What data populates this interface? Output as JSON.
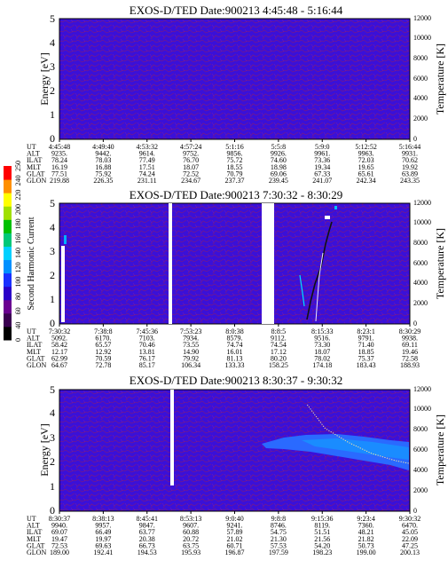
{
  "panels": [
    {
      "title": "EXOS-D/TED   Date:900213   4:45:48 - 5:16:44",
      "ylabel": "Energy [eV]",
      "y2label": "Temperature [K]",
      "ylim": [
        0,
        5
      ],
      "yticks": [
        "0",
        "1",
        "2",
        "3",
        "4",
        "5"
      ],
      "y2ticks": [
        "0",
        "2000",
        "4000",
        "6000",
        "8000",
        "10000",
        "12000"
      ],
      "row_labels": [
        "UT",
        "ALT",
        "ILAT",
        "MLT",
        "GLAT",
        "GLON"
      ],
      "columns": [
        [
          "4:45:48",
          "9235.",
          "78.24",
          "16.19",
          "77.51",
          "219.88"
        ],
        [
          "4:49:40",
          "9442.",
          "78.03",
          "16.88",
          "75.92",
          "226.35"
        ],
        [
          "4:53:32",
          "9614.",
          "77.49",
          "17.51",
          "74.24",
          "231.11"
        ],
        [
          "4:57:24",
          "9752.",
          "76.70",
          "18.07",
          "72.52",
          "234.67"
        ],
        [
          "5:1:16",
          "9856.",
          "75.72",
          "18.55",
          "70.79",
          "237.37"
        ],
        [
          "5:5:8",
          "9926.",
          "74.60",
          "18.98",
          "69.06",
          "239.45"
        ],
        [
          "5:9:0",
          "9961.",
          "73.36",
          "19.34",
          "67.33",
          "241.07"
        ],
        [
          "5:12:52",
          "9963.",
          "72.03",
          "19.65",
          "65.61",
          "242.34"
        ],
        [
          "5:16:44",
          "9931.",
          "70.62",
          "19.92",
          "63.89",
          "243.35"
        ]
      ]
    },
    {
      "title": "EXOS-D/TED   Date:900213   7:30:32 - 8:30:29",
      "ylabel": "Second Harmonic Current",
      "y2label": "Temperature [K]",
      "ylim": [
        0,
        5
      ],
      "yticks": [
        "0",
        "1",
        "2",
        "3",
        "4",
        "5"
      ],
      "y2ticks": [
        "0",
        "2000",
        "4000",
        "6000",
        "8000",
        "10000",
        "12000"
      ],
      "row_labels": [
        "UT",
        "ALT",
        "ILAT",
        "MLT",
        "GLAT",
        "GLON"
      ],
      "columns": [
        [
          "7:30:32",
          "5092.",
          "58.42",
          "12.17",
          "62.99",
          "64.67"
        ],
        [
          "7:38:8",
          "6170.",
          "65.57",
          "12.92",
          "70.59",
          "72.78"
        ],
        [
          "7:45:36",
          "7103.",
          "70.46",
          "13.81",
          "76.17",
          "85.17"
        ],
        [
          "7:53:23",
          "7934.",
          "73.55",
          "14.90",
          "79.92",
          "106.34"
        ],
        [
          "8:0:38",
          "8579.",
          "74.74",
          "16.01",
          "81.13",
          "133.33"
        ],
        [
          "8:8:5",
          "9112.",
          "74.54",
          "17.12",
          "80.20",
          "158.25"
        ],
        [
          "8:15:33",
          "9516.",
          "73.30",
          "18.07",
          "78.02",
          "174.18"
        ],
        [
          "8:23:1",
          "9791.",
          "71.40",
          "18.85",
          "75.37",
          "183.43"
        ],
        [
          "8:30:29",
          "9938.",
          "69.11",
          "19.46",
          "72.58",
          "188.93"
        ]
      ]
    },
    {
      "title": "EXOS-D/TED   Date:900213   8:30:37 - 9:30:32",
      "ylabel": "Energy [eV]",
      "y2label": "Temperature [K]",
      "ylim": [
        0,
        5
      ],
      "yticks": [
        "0",
        "1",
        "2",
        "3",
        "4",
        "5"
      ],
      "y2ticks": [
        "0",
        "2000",
        "4000",
        "6000",
        "8000",
        "10000",
        "12000"
      ],
      "row_labels": [
        "UT",
        "ALT",
        "ILAT",
        "MLT",
        "GLAT",
        "GLON"
      ],
      "columns": [
        [
          "8:30:37",
          "9940.",
          "69.07",
          "19.47",
          "72.53",
          "189.00"
        ],
        [
          "8:38:13",
          "9957.",
          "66.49",
          "19.97",
          "69.63",
          "192.41"
        ],
        [
          "8:45:41",
          "9847.",
          "63.77",
          "20.38",
          "66.73",
          "194.53"
        ],
        [
          "8:53:13",
          "9607.",
          "60.88",
          "20.72",
          "63.75",
          "195.93"
        ],
        [
          "9:0:40",
          "9241.",
          "57.89",
          "21.02",
          "60.71",
          "196.87"
        ],
        [
          "9:8:8",
          "8746.",
          "54.75",
          "21.30",
          "57.53",
          "197.59"
        ],
        [
          "9:15:36",
          "8119.",
          "51.51",
          "21.56",
          "54.20",
          "198.23"
        ],
        [
          "9:23:4",
          "7360.",
          "48.21",
          "21.82",
          "50.73",
          "199.00"
        ],
        [
          "9:30:32",
          "6470.",
          "45.05",
          "22.09",
          "47.25",
          "200.13"
        ]
      ]
    }
  ],
  "colorbar": {
    "ticks": [
      "0",
      "40",
      "60",
      "80",
      "100",
      "120",
      "140",
      "160",
      "180",
      "200",
      "220",
      "240",
      "250"
    ],
    "colors": [
      "#000000",
      "#3a0050",
      "#6a0090",
      "#2a00c8",
      "#1a30ff",
      "#0090ff",
      "#00d0ff",
      "#00c878",
      "#00c000",
      "#a0e000",
      "#ffff00",
      "#ff9000",
      "#ff0000"
    ]
  },
  "chart_data": [
    {
      "type": "heatmap",
      "title": "EXOS-D/TED   Date:900213   4:45:48 - 5:16:44",
      "xlabel": "UT",
      "ylabel": "Energy [eV]",
      "y2label": "Temperature [K]",
      "ylim": [
        0,
        5
      ],
      "y2lim": [
        0,
        12000
      ],
      "background_level": "low (blue)",
      "features": []
    },
    {
      "type": "heatmap",
      "title": "EXOS-D/TED   Date:900213   7:30:32 - 8:30:29",
      "xlabel": "UT",
      "ylabel": "Second Harmonic Current",
      "y2label": "Temperature [K]",
      "ylim": [
        0,
        5
      ],
      "y2lim": [
        0,
        12000
      ],
      "data_gaps_ut": [
        "7:52:40-7:53:20",
        "8:6:30-8:8:40"
      ],
      "features": [
        {
          "kind": "low-energy band",
          "ut": "7:30:32",
          "energy_range": [
            0.1,
            3.3
          ]
        },
        {
          "kind": "scattered enhancement",
          "ut_range": [
            "8:13:30",
            "8:17:30"
          ],
          "energy_range": [
            0.2,
            4.8
          ]
        }
      ]
    },
    {
      "type": "heatmap",
      "title": "EXOS-D/TED   Date:900213   8:30:37 - 9:30:32",
      "xlabel": "UT",
      "ylabel": "Energy [eV]",
      "y2label": "Temperature [K]",
      "ylim": [
        0,
        5
      ],
      "y2lim": [
        0,
        12000
      ],
      "data_gaps_ut": [
        "8:51:50-8:52:20"
      ],
      "features": [
        {
          "kind": "flux band",
          "ut_range": [
            "9:4:00",
            "9:30:32"
          ],
          "energy_range": [
            2.2,
            3.5
          ]
        }
      ],
      "temperature_trace": {
        "x": [
          "9:13:00",
          "9:16:00",
          "9:20:00",
          "9:24:00",
          "9:28:00",
          "9:30:32"
        ],
        "y": [
          10500,
          8200,
          6800,
          5700,
          5000,
          4700
        ]
      }
    }
  ]
}
